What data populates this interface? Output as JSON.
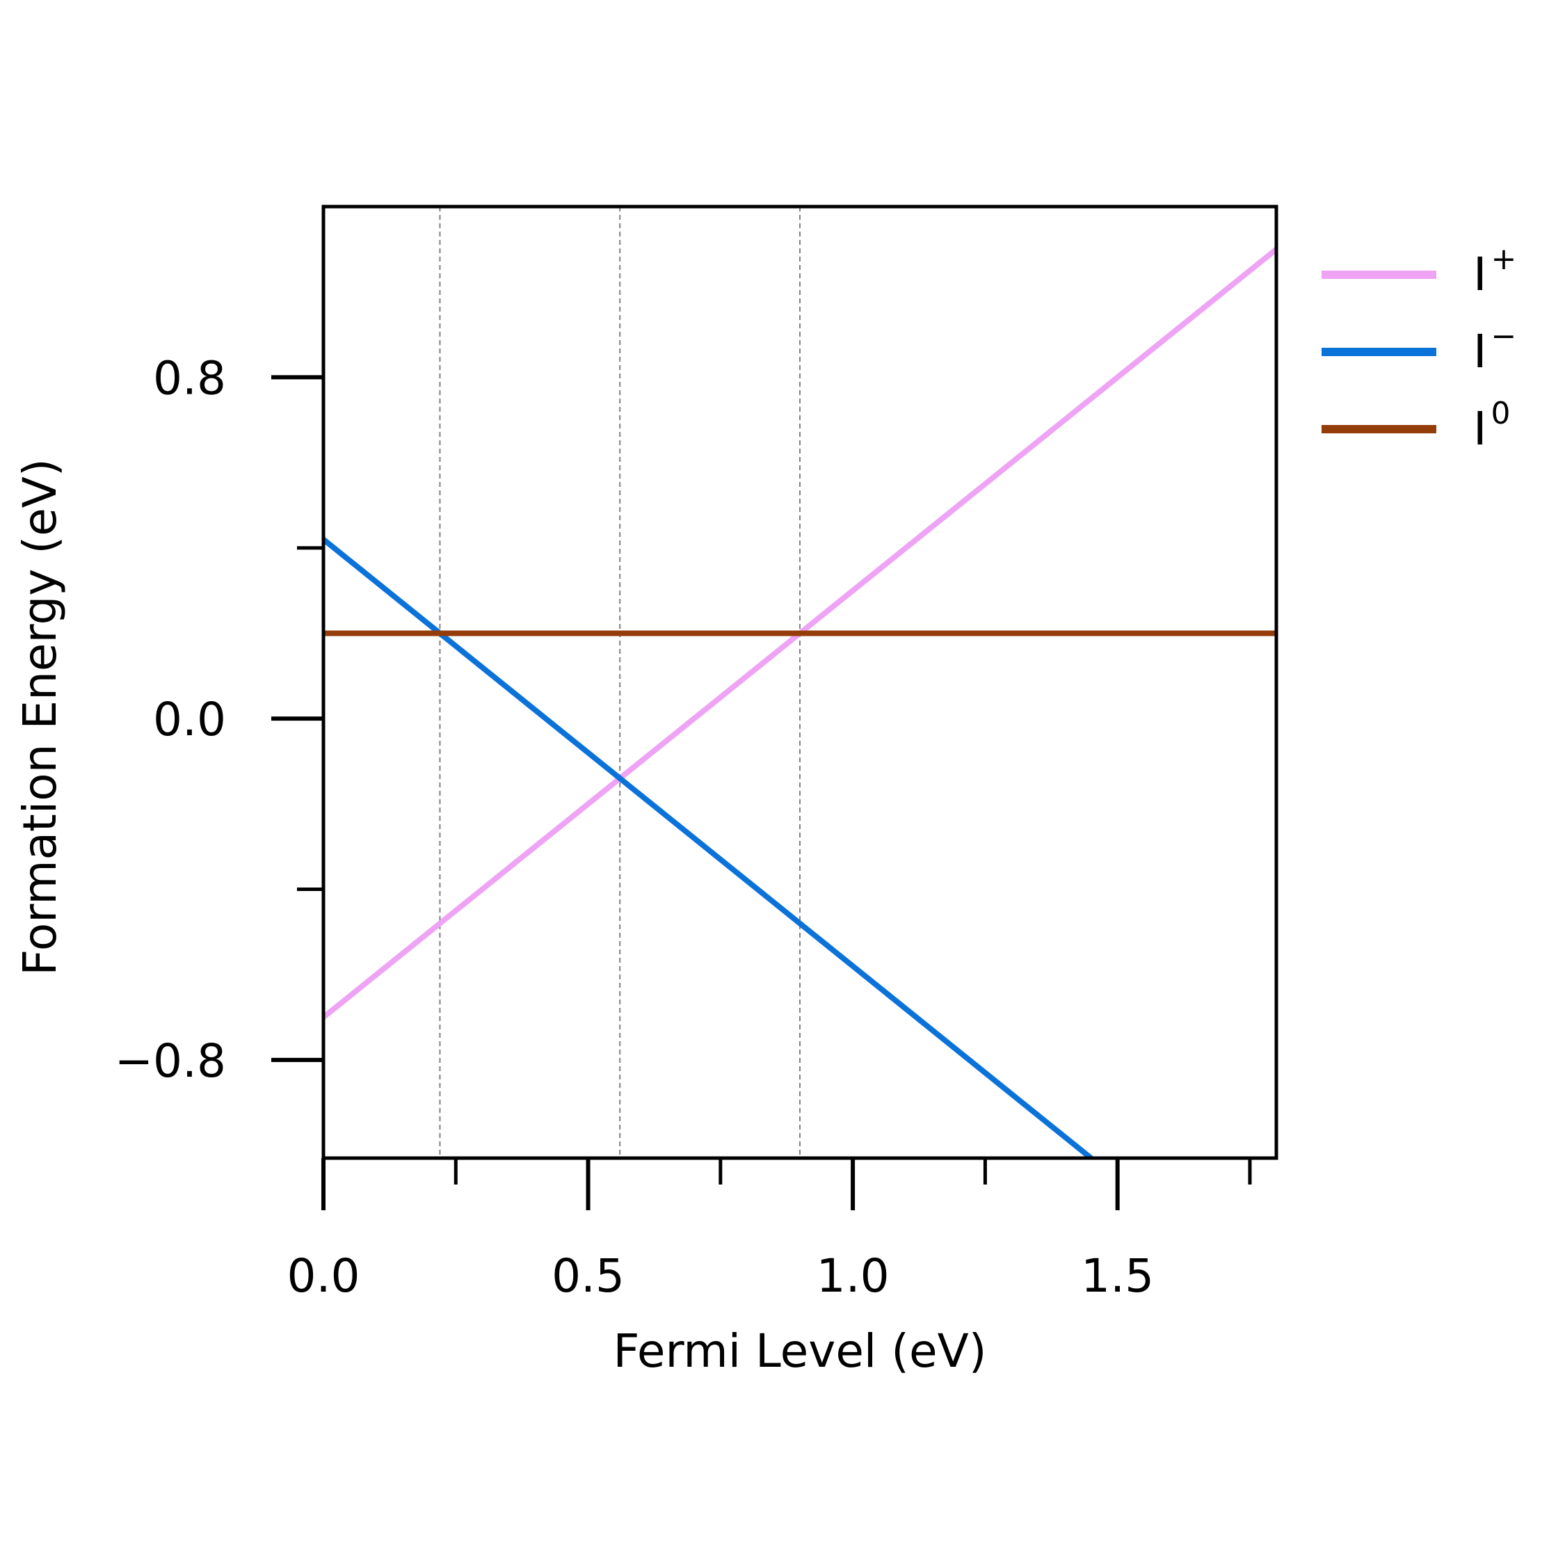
{
  "chart_data": {
    "type": "line",
    "title": "",
    "xlabel": "Fermi Level (eV)",
    "ylabel": "Formation Energy (eV)",
    "xlim": [
      0.0,
      1.8
    ],
    "ylim": [
      -1.03,
      1.2
    ],
    "x_ticks": {
      "major": [
        {
          "value": 0.0,
          "label": "0.0"
        },
        {
          "value": 0.5,
          "label": "0.5"
        },
        {
          "value": 1.0,
          "label": "1.0"
        },
        {
          "value": 1.5,
          "label": "1.5"
        }
      ],
      "minor": [
        0.25,
        0.75,
        1.25,
        1.75
      ]
    },
    "y_ticks": {
      "major": [
        {
          "value": -0.8,
          "label": "−0.8"
        },
        {
          "value": 0.0,
          "label": "0.0"
        },
        {
          "value": 0.8,
          "label": "0.8"
        }
      ],
      "minor": [
        -1.2,
        -0.4,
        0.4
      ]
    },
    "series": [
      {
        "name": "I",
        "charge": "+",
        "color": "#eea3f5",
        "x": [
          0.0,
          1.8
        ],
        "y": [
          -0.7,
          1.1
        ]
      },
      {
        "name": "I",
        "charge": "−",
        "color": "#0a72d9",
        "x": [
          0.0,
          1.8
        ],
        "y": [
          0.42,
          -1.38
        ]
      },
      {
        "name": "I",
        "charge": "0",
        "color": "#953c0b",
        "x": [
          0.0,
          1.8
        ],
        "y": [
          0.2,
          0.2
        ]
      }
    ],
    "transition_levels": [
      0.22,
      0.56,
      0.9
    ],
    "transition_line_color": "#808080",
    "grid": false,
    "legend": {
      "position": "outside-right"
    }
  }
}
